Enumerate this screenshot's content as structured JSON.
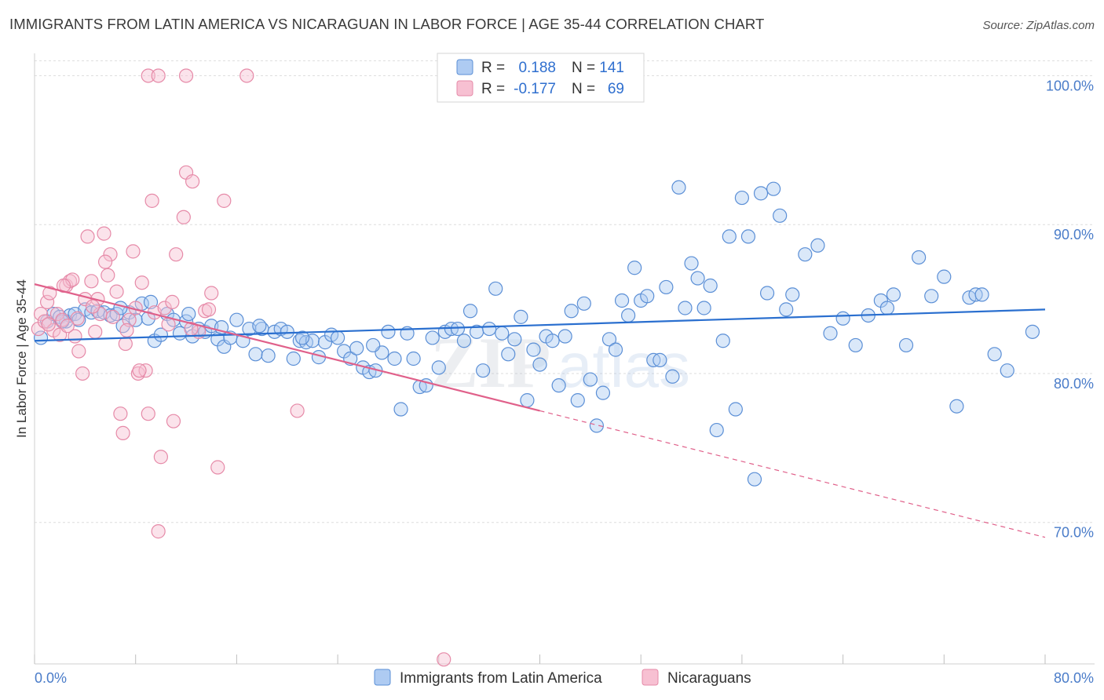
{
  "header": {
    "title": "IMMIGRANTS FROM LATIN AMERICA VS NICARAGUAN IN LABOR FORCE | AGE 35-44 CORRELATION CHART",
    "source": "Source: ZipAtlas.com"
  },
  "colors": {
    "blue_fill": "#aecbf2",
    "blue_stroke": "#5b8fd6",
    "blue_line": "#2a6fcf",
    "pink_fill": "#f7c0d2",
    "pink_stroke": "#e68aa8",
    "pink_line": "#e0608a",
    "tick_text": "#4a7cc9",
    "grid": "#dedede"
  },
  "legend": {
    "r_label": "R =",
    "n_label": "N =",
    "blue_r": "0.188",
    "blue_n": "141",
    "pink_r": "-0.177",
    "pink_n": "69"
  },
  "watermark": {
    "zip": "ZIP",
    "atlas": "atlas"
  },
  "chart_data": {
    "type": "scatter",
    "title": "IMMIGRANTS FROM LATIN AMERICA VS NICARAGUAN IN LABOR FORCE | AGE 35-44 CORRELATION CHART",
    "xlabel": "",
    "ylabel": "In Labor Force | Age 35-44",
    "xlim": [
      0,
      80
    ],
    "ylim": [
      60.5,
      101.5
    ],
    "x_tick_labels": [
      "0.0%",
      "80.0%"
    ],
    "y_ticks": [
      70,
      80,
      90,
      100
    ],
    "y_tick_labels": [
      "70.0%",
      "80.0%",
      "90.0%",
      "100.0%"
    ],
    "legend_placement": "top-center",
    "series": [
      {
        "name": "Immigrants from Latin America",
        "color": "#5b8fd6",
        "R": 0.188,
        "N": 141,
        "trend": {
          "x": [
            0,
            80
          ],
          "y": [
            82.2,
            84.3
          ],
          "dashed_from": null
        },
        "points": [
          [
            0.5,
            82.4
          ],
          [
            1.0,
            83.5
          ],
          [
            1.5,
            84.0
          ],
          [
            2.0,
            83.8
          ],
          [
            2.5,
            83.5
          ],
          [
            2.8,
            83.9
          ],
          [
            3.2,
            84.0
          ],
          [
            3.5,
            83.6
          ],
          [
            4.0,
            84.3
          ],
          [
            4.5,
            84.1
          ],
          [
            5.0,
            84.2
          ],
          [
            5.5,
            84.1
          ],
          [
            6.0,
            83.9
          ],
          [
            6.5,
            84.0
          ],
          [
            7.0,
            83.2
          ],
          [
            7.5,
            84.1
          ],
          [
            8.0,
            83.6
          ],
          [
            8.5,
            84.7
          ],
          [
            9.0,
            83.7
          ],
          [
            9.5,
            82.2
          ],
          [
            10.0,
            82.6
          ],
          [
            10.5,
            84.0
          ],
          [
            11.0,
            83.6
          ],
          [
            11.5,
            82.7
          ],
          [
            12.0,
            83.5
          ],
          [
            12.5,
            82.5
          ],
          [
            13.0,
            83.0
          ],
          [
            13.5,
            82.8
          ],
          [
            14.0,
            83.2
          ],
          [
            14.5,
            82.3
          ],
          [
            15.0,
            81.8
          ],
          [
            15.5,
            82.4
          ],
          [
            16.0,
            83.6
          ],
          [
            16.5,
            82.2
          ],
          [
            17.0,
            83.0
          ],
          [
            17.5,
            81.3
          ],
          [
            18.0,
            83.0
          ],
          [
            18.5,
            81.2
          ],
          [
            19.0,
            82.8
          ],
          [
            19.5,
            83.0
          ],
          [
            20.0,
            82.8
          ],
          [
            20.5,
            81.0
          ],
          [
            21.0,
            82.2
          ],
          [
            21.5,
            82.1
          ],
          [
            22.0,
            82.2
          ],
          [
            22.5,
            81.1
          ],
          [
            23.0,
            82.1
          ],
          [
            23.5,
            82.6
          ],
          [
            24.0,
            82.4
          ],
          [
            24.5,
            81.5
          ],
          [
            25.0,
            81.0
          ],
          [
            25.5,
            81.7
          ],
          [
            26.0,
            80.4
          ],
          [
            26.5,
            80.1
          ],
          [
            27.0,
            80.2
          ],
          [
            27.5,
            81.4
          ],
          [
            28.0,
            82.8
          ],
          [
            28.5,
            81.0
          ],
          [
            29.0,
            77.6
          ],
          [
            29.5,
            82.7
          ],
          [
            30.0,
            81.0
          ],
          [
            30.5,
            79.1
          ],
          [
            31.0,
            79.2
          ],
          [
            31.5,
            82.4
          ],
          [
            32.0,
            80.4
          ],
          [
            32.5,
            82.8
          ],
          [
            33.0,
            83.0
          ],
          [
            33.5,
            83.0
          ],
          [
            34.0,
            82.2
          ],
          [
            34.5,
            84.2
          ],
          [
            35.0,
            82.8
          ],
          [
            35.5,
            80.2
          ],
          [
            36.0,
            83.0
          ],
          [
            36.5,
            85.7
          ],
          [
            37.0,
            82.7
          ],
          [
            37.5,
            81.3
          ],
          [
            38.0,
            82.3
          ],
          [
            38.5,
            83.8
          ],
          [
            39.0,
            78.2
          ],
          [
            39.5,
            81.6
          ],
          [
            40.0,
            80.6
          ],
          [
            40.5,
            82.5
          ],
          [
            41.0,
            82.2
          ],
          [
            41.5,
            79.2
          ],
          [
            42.0,
            82.5
          ],
          [
            42.5,
            84.2
          ],
          [
            43.0,
            78.2
          ],
          [
            43.5,
            84.7
          ],
          [
            44.0,
            79.6
          ],
          [
            44.5,
            76.5
          ],
          [
            45.0,
            78.7
          ],
          [
            45.5,
            82.3
          ],
          [
            46.0,
            81.6
          ],
          [
            46.5,
            84.9
          ],
          [
            47.0,
            83.9
          ],
          [
            47.5,
            87.1
          ],
          [
            48.0,
            84.9
          ],
          [
            48.5,
            85.2
          ],
          [
            49.0,
            80.9
          ],
          [
            49.5,
            80.9
          ],
          [
            50.0,
            85.8
          ],
          [
            50.5,
            79.8
          ],
          [
            51.0,
            92.5
          ],
          [
            51.5,
            84.4
          ],
          [
            52.0,
            87.4
          ],
          [
            52.5,
            86.4
          ],
          [
            53.0,
            84.4
          ],
          [
            53.5,
            85.9
          ],
          [
            54.0,
            76.2
          ],
          [
            54.5,
            82.2
          ],
          [
            55.0,
            89.2
          ],
          [
            55.5,
            77.6
          ],
          [
            56.0,
            91.8
          ],
          [
            56.5,
            89.2
          ],
          [
            57.0,
            72.9
          ],
          [
            57.5,
            92.1
          ],
          [
            58.0,
            85.4
          ],
          [
            58.5,
            92.4
          ],
          [
            59.0,
            90.6
          ],
          [
            59.5,
            84.3
          ],
          [
            60.0,
            85.3
          ],
          [
            61.0,
            88.0
          ],
          [
            62.0,
            88.6
          ],
          [
            63.0,
            82.7
          ],
          [
            64.0,
            83.7
          ],
          [
            65.0,
            81.9
          ],
          [
            66.0,
            83.9
          ],
          [
            67.0,
            84.9
          ],
          [
            67.5,
            84.4
          ],
          [
            68.0,
            85.3
          ],
          [
            69.0,
            81.9
          ],
          [
            70.0,
            87.8
          ],
          [
            71.0,
            85.2
          ],
          [
            72.0,
            86.5
          ],
          [
            73.0,
            77.8
          ],
          [
            74.0,
            85.1
          ],
          [
            74.5,
            85.3
          ],
          [
            75.0,
            85.3
          ],
          [
            76.0,
            81.3
          ],
          [
            77.0,
            80.2
          ],
          [
            79.0,
            82.8
          ],
          [
            2.2,
            83.5
          ],
          [
            6.8,
            84.4
          ],
          [
            9.2,
            84.8
          ],
          [
            12.2,
            84.0
          ],
          [
            14.8,
            83.1
          ],
          [
            17.8,
            83.2
          ],
          [
            21.2,
            82.4
          ],
          [
            26.8,
            81.9
          ]
        ]
      },
      {
        "name": "Nicaraguans",
        "color": "#e68aa8",
        "R": -0.177,
        "N": 69,
        "trend": {
          "x": [
            0,
            80
          ],
          "y": [
            86.0,
            69.0
          ],
          "dashed_from": 40
        },
        "points": [
          [
            0.3,
            83.0
          ],
          [
            0.5,
            84.0
          ],
          [
            0.8,
            83.5
          ],
          [
            1.0,
            84.8
          ],
          [
            1.2,
            85.4
          ],
          [
            1.5,
            82.9
          ],
          [
            1.8,
            84.0
          ],
          [
            2.0,
            82.6
          ],
          [
            2.2,
            83.6
          ],
          [
            2.5,
            85.9
          ],
          [
            2.8,
            86.2
          ],
          [
            3.0,
            86.3
          ],
          [
            3.2,
            82.5
          ],
          [
            3.5,
            81.5
          ],
          [
            3.8,
            80.0
          ],
          [
            4.0,
            85.0
          ],
          [
            4.2,
            89.2
          ],
          [
            4.5,
            86.2
          ],
          [
            4.8,
            82.8
          ],
          [
            5.0,
            85.0
          ],
          [
            5.2,
            84.0
          ],
          [
            5.5,
            89.4
          ],
          [
            5.8,
            86.6
          ],
          [
            6.0,
            88.0
          ],
          [
            6.2,
            83.8
          ],
          [
            6.5,
            85.5
          ],
          [
            6.8,
            77.3
          ],
          [
            7.0,
            76.0
          ],
          [
            7.2,
            82.0
          ],
          [
            7.5,
            83.6
          ],
          [
            7.8,
            88.2
          ],
          [
            8.0,
            84.4
          ],
          [
            8.2,
            80.0
          ],
          [
            8.5,
            86.1
          ],
          [
            8.8,
            80.2
          ],
          [
            9.0,
            77.3
          ],
          [
            9.3,
            91.6
          ],
          [
            9.5,
            84.1
          ],
          [
            9.8,
            69.4
          ],
          [
            10.0,
            74.4
          ],
          [
            10.3,
            84.4
          ],
          [
            10.6,
            83.3
          ],
          [
            11.0,
            76.8
          ],
          [
            11.2,
            88.0
          ],
          [
            11.8,
            90.5
          ],
          [
            12.0,
            93.5
          ],
          [
            12.5,
            92.9
          ],
          [
            13.0,
            82.8
          ],
          [
            13.5,
            84.2
          ],
          [
            14.0,
            85.4
          ],
          [
            14.5,
            73.7
          ],
          [
            15.0,
            91.6
          ],
          [
            9.0,
            100.0
          ],
          [
            9.8,
            100.0
          ],
          [
            12.0,
            100.0
          ],
          [
            16.8,
            100.0
          ],
          [
            20.8,
            77.5
          ],
          [
            32.4,
            60.8
          ],
          [
            2.3,
            85.9
          ],
          [
            3.4,
            83.7
          ],
          [
            5.6,
            87.5
          ],
          [
            7.3,
            82.9
          ],
          [
            8.3,
            80.2
          ],
          [
            10.9,
            84.8
          ],
          [
            12.4,
            83.0
          ],
          [
            13.8,
            84.3
          ],
          [
            1.1,
            83.3
          ],
          [
            2.6,
            83.2
          ],
          [
            4.6,
            84.5
          ]
        ]
      }
    ]
  }
}
